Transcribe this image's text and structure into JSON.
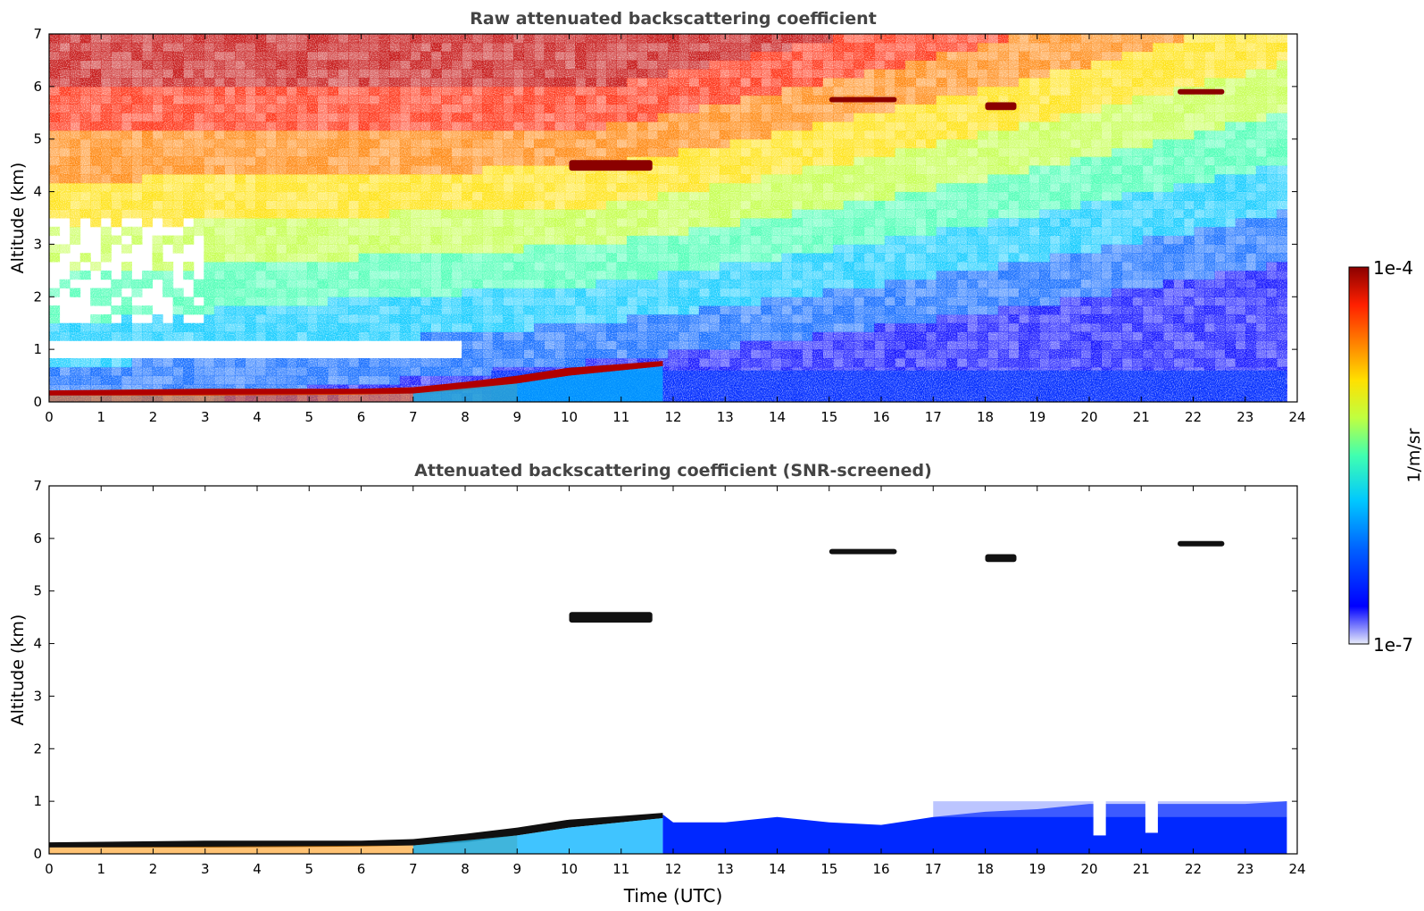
{
  "colorbar": {
    "max_label": "1e-4",
    "min_label": "1e-7",
    "unit_label": "1/m/sr",
    "scale": "log",
    "range": [
      1e-07,
      0.0001
    ],
    "colormap": [
      "#e8ecfa",
      "#0000ff",
      "#0060ff",
      "#00c8ff",
      "#40ffb0",
      "#c0ff40",
      "#ffe000",
      "#ff8000",
      "#ff2000",
      "#8b0000"
    ]
  },
  "chart_data": [
    {
      "type": "heatmap",
      "title": "Raw attenuated backscattering coefficient",
      "xlabel": "",
      "ylabel": "Altitude (km)",
      "xlim": [
        0,
        24
      ],
      "ylim": [
        0,
        7
      ],
      "x_ticks": [
        "0",
        "1",
        "2",
        "3",
        "4",
        "5",
        "6",
        "7",
        "8",
        "9",
        "10",
        "11",
        "12",
        "13",
        "14",
        "15",
        "16",
        "17",
        "18",
        "19",
        "20",
        "21",
        "22",
        "23",
        "24"
      ],
      "y_ticks": [
        "0",
        "1",
        "2",
        "3",
        "4",
        "5",
        "6",
        "7"
      ],
      "features": [
        {
          "name": "aerosol-layer",
          "time_utc": [
            0,
            11.8
          ],
          "altitude_km": [
            0.1,
            0.75
          ],
          "value": "high"
        },
        {
          "name": "cloud-5.7km",
          "time_utc": [
            15,
            16.3
          ],
          "altitude_km": [
            5.7,
            5.8
          ],
          "value": "high"
        },
        {
          "name": "cloud-5.6km",
          "time_utc": [
            18,
            18.6
          ],
          "altitude_km": [
            5.55,
            5.7
          ],
          "value": "high"
        },
        {
          "name": "cloud-5.9km",
          "time_utc": [
            21.7,
            22.6
          ],
          "altitude_km": [
            5.85,
            5.95
          ],
          "value": "high"
        },
        {
          "name": "cloud-4.5km",
          "time_utc": [
            10,
            11.6
          ],
          "altitude_km": [
            4.4,
            4.6
          ],
          "value": "high"
        }
      ]
    },
    {
      "type": "heatmap",
      "title": "Attenuated backscattering coefficient (SNR-screened)",
      "xlabel": "Time (UTC)",
      "ylabel": "Altitude (km)",
      "xlim": [
        0,
        24
      ],
      "ylim": [
        0,
        7
      ],
      "x_ticks": [
        "0",
        "1",
        "2",
        "3",
        "4",
        "5",
        "6",
        "7",
        "8",
        "9",
        "10",
        "11",
        "12",
        "13",
        "14",
        "15",
        "16",
        "17",
        "18",
        "19",
        "20",
        "21",
        "22",
        "23",
        "24"
      ],
      "y_ticks": [
        "0",
        "1",
        "2",
        "3",
        "4",
        "5",
        "6",
        "7"
      ],
      "features": [
        {
          "name": "aerosol-layer",
          "time_utc": [
            0,
            11.8
          ],
          "altitude_km": [
            0.1,
            0.75
          ],
          "value": "very-high"
        },
        {
          "name": "boundary-layer",
          "time_utc": [
            11.8,
            23.8
          ],
          "altitude_km": [
            0,
            1.0
          ],
          "value": "low"
        },
        {
          "name": "cloud-5.7km",
          "time_utc": [
            15,
            16.3
          ],
          "altitude_km": [
            5.7,
            5.8
          ],
          "value": "very-high"
        },
        {
          "name": "cloud-5.6km",
          "time_utc": [
            18,
            18.6
          ],
          "altitude_km": [
            5.55,
            5.7
          ],
          "value": "very-high"
        },
        {
          "name": "cloud-5.9km",
          "time_utc": [
            21.7,
            22.6
          ],
          "altitude_km": [
            5.85,
            5.95
          ],
          "value": "very-high"
        },
        {
          "name": "cloud-4.5km",
          "time_utc": [
            10,
            11.6
          ],
          "altitude_km": [
            4.4,
            4.6
          ],
          "value": "high"
        }
      ]
    }
  ]
}
